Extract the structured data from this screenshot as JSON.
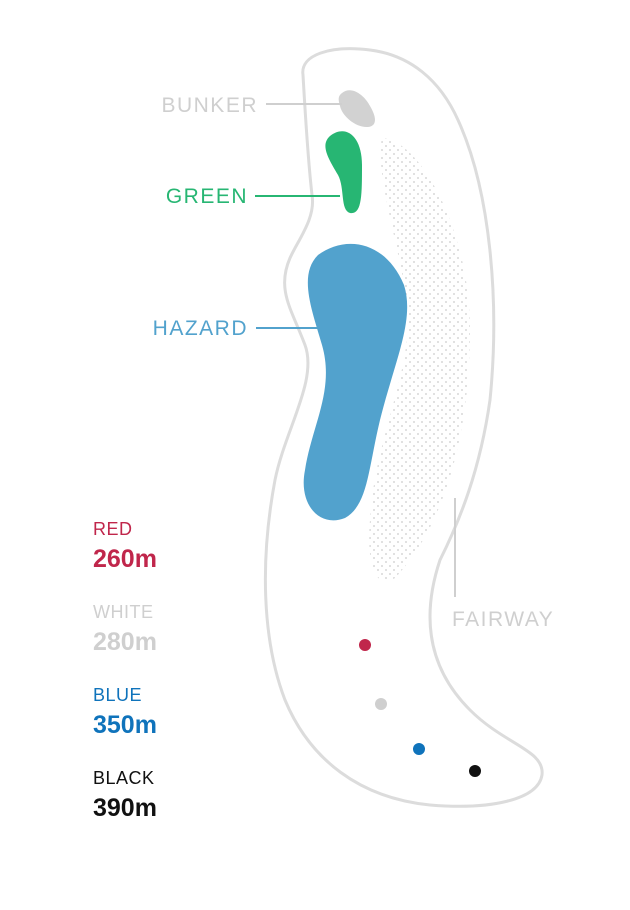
{
  "colors": {
    "outline": "#dcdcdc",
    "fairway_dots": "#d7d7d7",
    "bunker": "#d2d2d2",
    "green": "#27b673",
    "hazard": "#52a2cd",
    "label_grey": "#cfcfcf",
    "red": "#c0264b",
    "white": "#cfcfcf",
    "blue": "#0f73bb",
    "black": "#111111"
  },
  "labels": {
    "bunker": "BUNKER",
    "green": "GREEN",
    "hazard": "HAZARD",
    "fairway": "FAIRWAY"
  },
  "tees": [
    {
      "key": "red",
      "name": "RED",
      "distance": "260m"
    },
    {
      "key": "white",
      "name": "WHITE",
      "distance": "280m"
    },
    {
      "key": "blue",
      "name": "BLUE",
      "distance": "350m"
    },
    {
      "key": "black",
      "name": "BLACK",
      "distance": "390m"
    }
  ]
}
